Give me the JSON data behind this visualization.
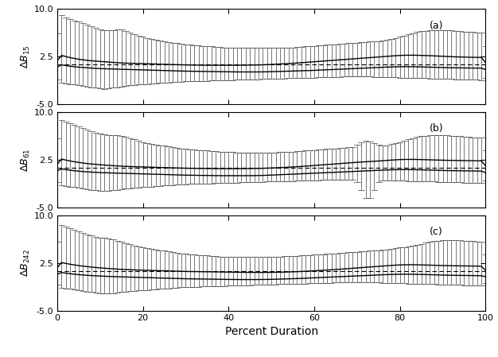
{
  "title_a": "(a)",
  "title_b": "(b)",
  "title_c": "(c)",
  "ylabel_a": "$\\Delta B_{15}$",
  "ylabel_b": "$\\Delta B_{61}$",
  "ylabel_c": "$\\Delta B_{242}$",
  "xlabel": "Percent Duration",
  "ylim": [
    -5.0,
    10.0
  ],
  "yticks": [
    -5.0,
    2.5,
    10.0
  ],
  "xlim": [
    0,
    100
  ],
  "panels": {
    "a": {
      "dashed_y": 1.3,
      "upper_curve": [
        2.9,
        2.7,
        2.5,
        2.35,
        2.2,
        2.1,
        2.0,
        1.9,
        1.85,
        1.8,
        1.75,
        1.7,
        1.65,
        1.6,
        1.55,
        1.5,
        1.48,
        1.46,
        1.44,
        1.42,
        1.4,
        1.38,
        1.36,
        1.34,
        1.32,
        1.3,
        1.28,
        1.26,
        1.24,
        1.22,
        1.2,
        1.19,
        1.18,
        1.17,
        1.16,
        1.15,
        1.15,
        1.15,
        1.15,
        1.15,
        1.15,
        1.15,
        1.15,
        1.16,
        1.17,
        1.18,
        1.19,
        1.2,
        1.22,
        1.25,
        1.28,
        1.31,
        1.35,
        1.38,
        1.42,
        1.46,
        1.5,
        1.55,
        1.6,
        1.65,
        1.7,
        1.75,
        1.8,
        1.85,
        1.9,
        1.95,
        2.0,
        2.05,
        2.1,
        2.15,
        2.2,
        2.25,
        2.3,
        2.35,
        2.4,
        2.45,
        2.5,
        2.55,
        2.6,
        2.65,
        2.7,
        2.72,
        2.73,
        2.73,
        2.72,
        2.7,
        2.68,
        2.65,
        2.62,
        2.59,
        2.56,
        2.53,
        2.5,
        2.47,
        2.45,
        2.43,
        2.41,
        2.4,
        2.39,
        2.38,
        2.37
      ],
      "lower_curve": [
        1.35,
        1.2,
        1.1,
        1.0,
        0.9,
        0.85,
        0.8,
        0.75,
        0.7,
        0.65,
        0.62,
        0.6,
        0.58,
        0.56,
        0.54,
        0.52,
        0.5,
        0.48,
        0.46,
        0.44,
        0.42,
        0.4,
        0.38,
        0.36,
        0.34,
        0.32,
        0.3,
        0.28,
        0.26,
        0.24,
        0.22,
        0.21,
        0.2,
        0.19,
        0.18,
        0.17,
        0.16,
        0.15,
        0.14,
        0.13,
        0.12,
        0.11,
        0.1,
        0.1,
        0.1,
        0.1,
        0.1,
        0.1,
        0.11,
        0.12,
        0.14,
        0.16,
        0.18,
        0.2,
        0.22,
        0.24,
        0.26,
        0.28,
        0.3,
        0.32,
        0.35,
        0.38,
        0.41,
        0.44,
        0.47,
        0.5,
        0.53,
        0.56,
        0.59,
        0.62,
        0.65,
        0.68,
        0.71,
        0.74,
        0.77,
        0.8,
        0.83,
        0.86,
        0.88,
        0.9,
        0.92,
        0.93,
        0.93,
        0.92,
        0.91,
        0.89,
        0.87,
        0.85,
        0.83,
        0.81,
        0.79,
        0.77,
        0.76,
        0.75,
        0.74,
        0.73,
        0.72,
        0.71,
        0.7,
        0.7,
        0.7
      ],
      "errbar_top": [
        9.3,
        9.0,
        8.7,
        8.4,
        8.2,
        8.0,
        7.8,
        7.6,
        7.3,
        7.0,
        6.8,
        6.7,
        6.6,
        6.5,
        7.0,
        6.8,
        6.5,
        6.2,
        6.0,
        5.8,
        5.6,
        5.4,
        5.2,
        5.1,
        5.0,
        4.9,
        4.8,
        4.7,
        4.6,
        4.5,
        4.4,
        4.35,
        4.3,
        4.25,
        4.2,
        4.15,
        4.1,
        4.05,
        4.0,
        3.95,
        3.9,
        3.85,
        3.85,
        3.85,
        3.85,
        3.85,
        3.85,
        3.85,
        3.85,
        3.85,
        3.85,
        3.85,
        3.85,
        3.85,
        3.9,
        3.95,
        4.0,
        4.05,
        4.1,
        4.15,
        4.2,
        4.25,
        4.3,
        4.35,
        4.4,
        4.45,
        4.5,
        4.55,
        4.6,
        4.65,
        4.7,
        4.75,
        4.8,
        4.85,
        4.9,
        4.95,
        5.0,
        5.1,
        5.2,
        5.4,
        5.6,
        5.8,
        6.0,
        6.2,
        6.4,
        6.5,
        6.6,
        6.65,
        6.7,
        6.7,
        6.7,
        6.65,
        6.6,
        6.55,
        6.5,
        6.45,
        6.4,
        6.35,
        6.3,
        6.25,
        6.2
      ],
      "errbar_bot": [
        -1.5,
        -1.6,
        -1.7,
        -1.8,
        -1.9,
        -2.0,
        -2.1,
        -2.2,
        -2.3,
        -2.4,
        -2.5,
        -2.6,
        -2.5,
        -2.4,
        -2.3,
        -2.2,
        -2.1,
        -2.0,
        -1.95,
        -1.9,
        -1.85,
        -1.8,
        -1.75,
        -1.7,
        -1.65,
        -1.6,
        -1.55,
        -1.5,
        -1.45,
        -1.4,
        -1.38,
        -1.36,
        -1.34,
        -1.32,
        -1.3,
        -1.28,
        -1.26,
        -1.24,
        -1.22,
        -1.2,
        -1.18,
        -1.16,
        -1.14,
        -1.12,
        -1.1,
        -1.08,
        -1.06,
        -1.04,
        -1.02,
        -1.0,
        -0.98,
        -0.96,
        -0.94,
        -0.92,
        -0.9,
        -0.88,
        -0.86,
        -0.84,
        -0.82,
        -0.8,
        -0.78,
        -0.76,
        -0.74,
        -0.72,
        -0.7,
        -0.68,
        -0.66,
        -0.64,
        -0.62,
        -0.6,
        -0.58,
        -0.6,
        -0.62,
        -0.64,
        -0.66,
        -0.68,
        -0.7,
        -0.72,
        -0.74,
        -0.76,
        -0.78,
        -0.8,
        -0.82,
        -0.84,
        -0.86,
        -0.88,
        -0.9,
        -0.92,
        -0.94,
        -0.96,
        -0.98,
        -1.0,
        -1.02,
        -1.04,
        -1.06,
        -1.08,
        -1.1,
        -1.12,
        -1.14,
        -1.16,
        -1.18
      ]
    },
    "b": {
      "dashed_y": 1.3,
      "upper_curve": [
        2.8,
        2.6,
        2.45,
        2.3,
        2.18,
        2.08,
        1.98,
        1.9,
        1.83,
        1.77,
        1.72,
        1.67,
        1.62,
        1.57,
        1.53,
        1.49,
        1.46,
        1.43,
        1.41,
        1.39,
        1.37,
        1.35,
        1.33,
        1.31,
        1.29,
        1.27,
        1.25,
        1.23,
        1.21,
        1.19,
        1.17,
        1.16,
        1.15,
        1.14,
        1.13,
        1.12,
        1.11,
        1.1,
        1.1,
        1.1,
        1.1,
        1.1,
        1.1,
        1.1,
        1.11,
        1.12,
        1.13,
        1.14,
        1.16,
        1.18,
        1.21,
        1.24,
        1.27,
        1.3,
        1.33,
        1.37,
        1.41,
        1.45,
        1.5,
        1.55,
        1.6,
        1.65,
        1.7,
        1.75,
        1.8,
        1.85,
        1.9,
        1.95,
        2.0,
        2.05,
        2.1,
        2.14,
        2.18,
        2.22,
        2.26,
        2.3,
        2.35,
        2.4,
        2.45,
        2.5,
        2.53,
        2.55,
        2.56,
        2.56,
        2.55,
        2.53,
        2.51,
        2.49,
        2.47,
        2.45,
        2.43,
        2.41,
        2.4,
        2.39,
        2.38,
        2.37,
        2.36,
        2.35,
        2.34,
        2.33,
        2.32
      ],
      "lower_curve": [
        1.2,
        1.05,
        0.95,
        0.85,
        0.77,
        0.7,
        0.65,
        0.6,
        0.56,
        0.52,
        0.49,
        0.46,
        0.44,
        0.42,
        0.4,
        0.38,
        0.36,
        0.34,
        0.32,
        0.3,
        0.28,
        0.26,
        0.24,
        0.22,
        0.2,
        0.18,
        0.16,
        0.14,
        0.12,
        0.1,
        0.08,
        0.07,
        0.06,
        0.05,
        0.04,
        0.03,
        0.02,
        0.01,
        0.0,
        0.0,
        0.0,
        0.0,
        0.0,
        0.0,
        0.0,
        0.0,
        0.01,
        0.02,
        0.04,
        0.06,
        0.09,
        0.12,
        0.15,
        0.18,
        0.21,
        0.24,
        0.27,
        0.3,
        0.33,
        0.36,
        0.39,
        0.42,
        0.45,
        0.48,
        0.51,
        0.54,
        0.57,
        0.6,
        0.63,
        0.66,
        0.69,
        0.72,
        0.75,
        0.78,
        0.81,
        0.84,
        0.87,
        0.9,
        0.92,
        0.94,
        0.95,
        0.96,
        0.96,
        0.95,
        0.94,
        0.92,
        0.9,
        0.88,
        0.86,
        0.84,
        0.82,
        0.8,
        0.79,
        0.78,
        0.77,
        0.76,
        0.75,
        0.74,
        0.73,
        0.72,
        0.71
      ],
      "errbar_top": [
        9.0,
        8.7,
        8.5,
        8.2,
        8.0,
        7.7,
        7.5,
        7.2,
        7.0,
        6.8,
        6.6,
        6.5,
        6.4,
        6.3,
        6.5,
        6.3,
        6.1,
        5.9,
        5.7,
        5.5,
        5.3,
        5.1,
        5.0,
        4.9,
        4.8,
        4.7,
        4.6,
        4.5,
        4.4,
        4.3,
        4.2,
        4.15,
        4.1,
        4.05,
        4.0,
        3.95,
        3.9,
        3.85,
        3.8,
        3.75,
        3.7,
        3.68,
        3.66,
        3.64,
        3.62,
        3.6,
        3.6,
        3.6,
        3.6,
        3.62,
        3.64,
        3.66,
        3.68,
        3.7,
        3.75,
        3.8,
        3.85,
        3.9,
        3.95,
        4.0,
        4.05,
        4.1,
        4.15,
        4.2,
        4.25,
        4.3,
        4.35,
        4.4,
        4.45,
        4.5,
        4.55,
        5.5,
        5.6,
        5.5,
        5.0,
        4.8,
        4.7,
        4.8,
        4.9,
        5.1,
        5.3,
        5.5,
        5.7,
        5.9,
        6.1,
        6.2,
        6.3,
        6.35,
        6.4,
        6.4,
        6.4,
        6.35,
        6.3,
        6.25,
        6.2,
        6.15,
        6.1,
        6.05,
        6.0,
        5.95,
        5.9
      ],
      "errbar_bot": [
        -1.4,
        -1.5,
        -1.6,
        -1.7,
        -1.8,
        -1.9,
        -2.0,
        -2.1,
        -2.2,
        -2.3,
        -2.4,
        -2.5,
        -2.4,
        -2.3,
        -2.2,
        -2.1,
        -2.0,
        -1.95,
        -1.9,
        -1.85,
        -1.8,
        -1.75,
        -1.7,
        -1.65,
        -1.6,
        -1.55,
        -1.5,
        -1.45,
        -1.4,
        -1.35,
        -1.32,
        -1.3,
        -1.28,
        -1.26,
        -1.24,
        -1.22,
        -1.2,
        -1.18,
        -1.16,
        -1.14,
        -1.12,
        -1.1,
        -1.08,
        -1.06,
        -1.04,
        -1.02,
        -1.0,
        -0.98,
        -0.96,
        -0.94,
        -0.92,
        -0.9,
        -0.88,
        -0.86,
        -0.84,
        -0.82,
        -0.8,
        -0.78,
        -0.76,
        -0.74,
        -0.72,
        -0.7,
        -0.68,
        -0.66,
        -0.64,
        -0.62,
        -0.6,
        -0.62,
        -0.64,
        -0.66,
        -0.68,
        -1.5,
        -4.5,
        -4.5,
        -1.5,
        -0.8,
        -0.7,
        -0.72,
        -0.74,
        -0.76,
        -0.78,
        -0.8,
        -0.82,
        -0.84,
        -0.86,
        -0.88,
        -0.9,
        -0.92,
        -0.94,
        -0.96,
        -0.98,
        -1.0,
        -1.02,
        -1.04,
        -1.06,
        -1.08,
        -1.1,
        -1.12,
        -1.14,
        -1.16,
        -1.18
      ]
    },
    "c": {
      "dashed_y": 1.2,
      "upper_curve": [
        2.7,
        2.55,
        2.4,
        2.28,
        2.17,
        2.07,
        1.98,
        1.9,
        1.83,
        1.77,
        1.71,
        1.66,
        1.61,
        1.56,
        1.52,
        1.48,
        1.45,
        1.42,
        1.39,
        1.37,
        1.35,
        1.33,
        1.31,
        1.29,
        1.27,
        1.25,
        1.23,
        1.21,
        1.19,
        1.17,
        1.15,
        1.14,
        1.13,
        1.12,
        1.11,
        1.1,
        1.09,
        1.08,
        1.07,
        1.06,
        1.05,
        1.04,
        1.03,
        1.02,
        1.01,
        1.0,
        1.0,
        1.0,
        1.0,
        1.0,
        1.01,
        1.02,
        1.03,
        1.05,
        1.07,
        1.09,
        1.12,
        1.15,
        1.18,
        1.21,
        1.25,
        1.29,
        1.33,
        1.37,
        1.41,
        1.45,
        1.5,
        1.55,
        1.6,
        1.65,
        1.7,
        1.75,
        1.8,
        1.85,
        1.9,
        1.95,
        2.0,
        2.05,
        2.1,
        2.15,
        2.18,
        2.2,
        2.21,
        2.21,
        2.2,
        2.18,
        2.16,
        2.14,
        2.12,
        2.1,
        2.08,
        2.06,
        2.05,
        2.04,
        2.03,
        2.02,
        2.01,
        2.0,
        1.99,
        1.98,
        1.97
      ],
      "lower_curve": [
        1.1,
        0.98,
        0.88,
        0.79,
        0.71,
        0.65,
        0.59,
        0.54,
        0.5,
        0.46,
        0.43,
        0.4,
        0.37,
        0.34,
        0.32,
        0.3,
        0.28,
        0.26,
        0.24,
        0.22,
        0.2,
        0.18,
        0.16,
        0.14,
        0.12,
        0.1,
        0.08,
        0.06,
        0.04,
        0.02,
        0.0,
        -0.01,
        -0.02,
        -0.03,
        -0.04,
        -0.05,
        -0.06,
        -0.07,
        -0.08,
        -0.09,
        -0.1,
        -0.11,
        -0.12,
        -0.12,
        -0.12,
        -0.12,
        -0.12,
        -0.12,
        -0.11,
        -0.1,
        -0.09,
        -0.07,
        -0.05,
        -0.03,
        -0.01,
        0.01,
        0.03,
        0.06,
        0.09,
        0.12,
        0.15,
        0.18,
        0.21,
        0.24,
        0.27,
        0.3,
        0.33,
        0.36,
        0.39,
        0.42,
        0.45,
        0.48,
        0.51,
        0.54,
        0.57,
        0.6,
        0.63,
        0.66,
        0.68,
        0.7,
        0.71,
        0.72,
        0.72,
        0.71,
        0.7,
        0.68,
        0.66,
        0.64,
        0.62,
        0.6,
        0.58,
        0.56,
        0.55,
        0.54,
        0.53,
        0.52,
        0.51,
        0.5,
        0.49,
        0.48,
        0.47
      ],
      "errbar_top": [
        8.8,
        8.5,
        8.2,
        7.9,
        7.7,
        7.4,
        7.2,
        7.0,
        6.8,
        6.6,
        6.5,
        6.4,
        6.3,
        6.2,
        6.0,
        5.8,
        5.6,
        5.4,
        5.2,
        5.0,
        4.9,
        4.8,
        4.7,
        4.6,
        4.5,
        4.4,
        4.3,
        4.2,
        4.1,
        4.0,
        3.9,
        3.85,
        3.8,
        3.75,
        3.7,
        3.65,
        3.6,
        3.55,
        3.5,
        3.48,
        3.46,
        3.44,
        3.42,
        3.4,
        3.4,
        3.4,
        3.4,
        3.4,
        3.42,
        3.44,
        3.46,
        3.48,
        3.5,
        3.52,
        3.55,
        3.58,
        3.62,
        3.66,
        3.7,
        3.74,
        3.78,
        3.82,
        3.86,
        3.9,
        3.95,
        4.0,
        4.05,
        4.1,
        4.15,
        4.2,
        4.25,
        4.3,
        4.35,
        4.4,
        4.45,
        4.5,
        4.55,
        4.62,
        4.7,
        4.8,
        4.9,
        5.0,
        5.1,
        5.2,
        5.35,
        5.5,
        5.65,
        5.8,
        5.9,
        6.0,
        6.05,
        6.1,
        6.1,
        6.08,
        6.05,
        6.0,
        5.95,
        5.9,
        5.85,
        5.8,
        5.75
      ],
      "errbar_bot": [
        -1.3,
        -1.4,
        -1.5,
        -1.6,
        -1.7,
        -1.8,
        -1.9,
        -2.0,
        -2.1,
        -2.2,
        -2.3,
        -2.4,
        -2.35,
        -2.3,
        -2.2,
        -2.1,
        -2.0,
        -1.95,
        -1.9,
        -1.85,
        -1.8,
        -1.75,
        -1.7,
        -1.65,
        -1.6,
        -1.55,
        -1.5,
        -1.45,
        -1.4,
        -1.35,
        -1.3,
        -1.28,
        -1.26,
        -1.24,
        -1.22,
        -1.2,
        -1.18,
        -1.16,
        -1.14,
        -1.12,
        -1.1,
        -1.08,
        -1.06,
        -1.04,
        -1.02,
        -1.0,
        -0.98,
        -0.96,
        -0.94,
        -0.92,
        -0.9,
        -0.88,
        -0.86,
        -0.84,
        -0.82,
        -0.8,
        -0.78,
        -0.76,
        -0.74,
        -0.72,
        -0.7,
        -0.68,
        -0.66,
        -0.64,
        -0.62,
        -0.6,
        -0.58,
        -0.56,
        -0.54,
        -0.52,
        -0.5,
        -0.52,
        -0.54,
        -0.56,
        -0.58,
        -0.6,
        -0.62,
        -0.64,
        -0.66,
        -0.68,
        -0.7,
        -0.72,
        -0.74,
        -0.76,
        -0.78,
        -0.8,
        -0.82,
        -0.84,
        -0.86,
        -0.88,
        -0.9,
        -0.92,
        -0.94,
        -0.96,
        -0.98,
        -1.0,
        -1.02,
        -1.04,
        -1.06,
        -1.08,
        -1.1
      ]
    }
  }
}
